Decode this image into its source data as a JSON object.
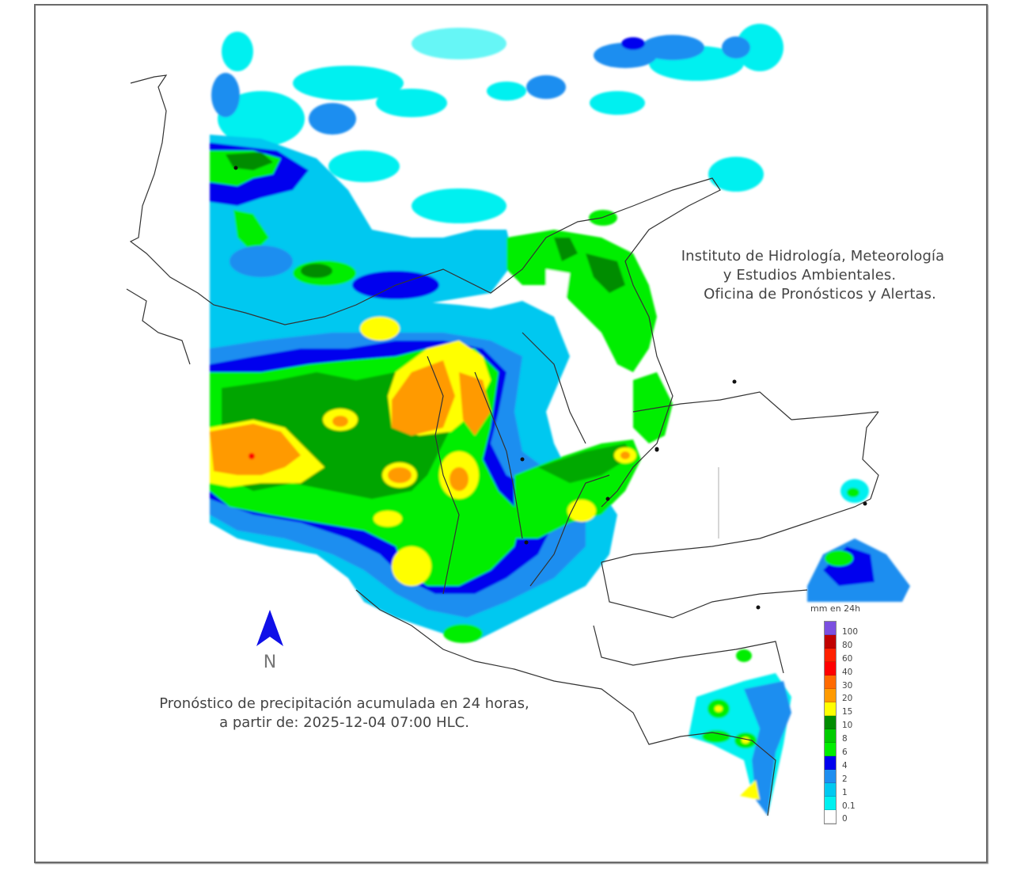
{
  "header": {
    "institution_lines": [
      "Instituto de Hidrología, Meteorología",
      "y Estudios Ambientales.",
      "Oficina de Pronósticos y Alertas."
    ]
  },
  "caption": {
    "lines": [
      "Pronóstico de precipitación acumulada en 24 horas,",
      "a partir de: 2025-12-04 07:00 HLC."
    ]
  },
  "north_arrow": {
    "icon": "north-arrow-icon",
    "label": "N",
    "color": "#1010e8"
  },
  "legend": {
    "title": "mm en 24h",
    "items": [
      {
        "label": "100",
        "color": "#7b4fe0"
      },
      {
        "label": "80",
        "color": "#c00000"
      },
      {
        "label": "60",
        "color": "#ff2000"
      },
      {
        "label": "40",
        "color": "#ff0000"
      },
      {
        "label": "30",
        "color": "#ff6a00"
      },
      {
        "label": "20",
        "color": "#ff9a00"
      },
      {
        "label": "15",
        "color": "#ffff00"
      },
      {
        "label": "10",
        "color": "#008c00"
      },
      {
        "label": "8",
        "color": "#00cc00"
      },
      {
        "label": "6",
        "color": "#00ee00"
      },
      {
        "label": "4",
        "color": "#0000ee"
      },
      {
        "label": "2",
        "color": "#1e8ef0"
      },
      {
        "label": "1",
        "color": "#00c8f0"
      },
      {
        "label": "0.1",
        "color": "#00f0f0"
      },
      {
        "label": "0",
        "color": "#ffffff"
      }
    ]
  },
  "map": {
    "title": "Precipitation forecast map - Colombia and surroundings",
    "colors": {
      "light_cyan": "#00f0f0",
      "cyan": "#00c8f0",
      "mid_blue": "#1e8ef0",
      "blue": "#0000ee",
      "light_green": "#00ee00",
      "green": "#00cc00",
      "dark_green": "#008c00",
      "yellow": "#ffff00",
      "orange": "#ff9a00",
      "dark_orange": "#ff6a00",
      "red": "#ff0000",
      "border": "#333333"
    }
  }
}
